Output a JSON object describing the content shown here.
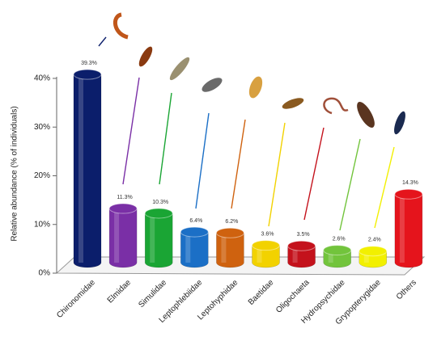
{
  "chart_data": {
    "type": "bar",
    "y_label": "Relative abundance (% of individuals)",
    "categories": [
      "Chironomidae",
      "Elmidae",
      "Simulidae",
      "Leptophlebiidae",
      "Leptohyphidae",
      "Baetidae",
      "Oligochaeta",
      "Hydropsychidae",
      "Grypopterygidae",
      "Others"
    ],
    "values": [
      39.3,
      11.3,
      10.3,
      6.4,
      6.2,
      3.6,
      3.5,
      2.6,
      2.4,
      14.3
    ],
    "value_labels": [
      "39.3%",
      "11.3%",
      "10.3%",
      "6.4%",
      "6.2%",
      "3.6%",
      "3.5%",
      "2.6%",
      "2.4%",
      "14.3%"
    ],
    "colors": [
      "#0b1e6b",
      "#7a2fa6",
      "#1aa534",
      "#1b6fc6",
      "#cf620f",
      "#f2d200",
      "#c4121c",
      "#72c43c",
      "#f2f000",
      "#e5141c"
    ],
    "ylim": [
      0,
      40
    ],
    "yticks": [
      {
        "value": 0,
        "label": "0%"
      },
      {
        "value": 10,
        "label": "10%"
      },
      {
        "value": 20,
        "label": "20%"
      },
      {
        "value": 30,
        "label": "30%"
      },
      {
        "value": 40,
        "label": "40%"
      }
    ],
    "grid": false
  }
}
